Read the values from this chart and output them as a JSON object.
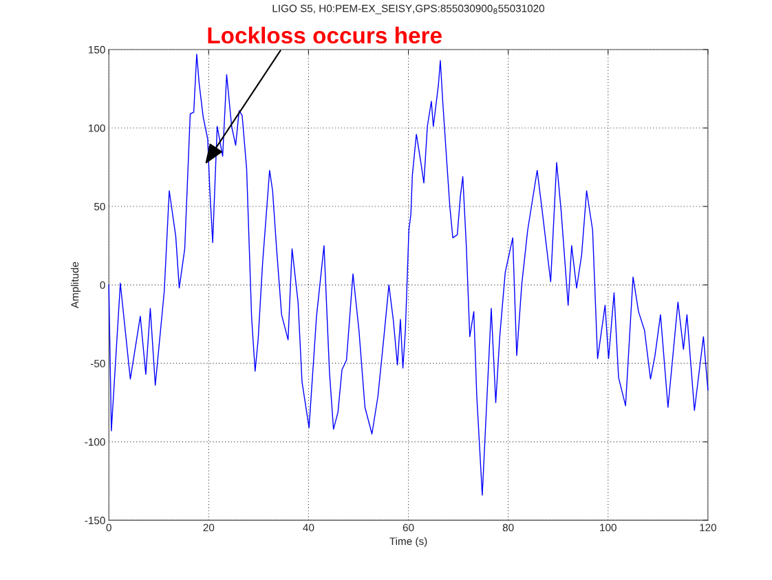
{
  "chart_data": {
    "type": "line",
    "title": "LIGO S5, H0:PEM-EX_SEISY,GPS:855030900$_{8}$55031020",
    "xlabel": "Time (s)",
    "ylabel": "Amplitude",
    "x": [
      0,
      0.5,
      2.3,
      4.3,
      6.3,
      7.4,
      8.3,
      9.3,
      11.1,
      12.1,
      13.4,
      14.1,
      15.2,
      16.3,
      17.0,
      17.6,
      18.1,
      18.9,
      19.8,
      20.2,
      20.8,
      21.7,
      22.8,
      23.6,
      24.6,
      25.4,
      26.1,
      26.7,
      27.6,
      28.6,
      29.3,
      29.9,
      30.8,
      32.2,
      32.8,
      33.6,
      34.6,
      35.9,
      36.7,
      37.9,
      38.7,
      40.1,
      41.6,
      43.1,
      44.2,
      45.0,
      45.9,
      46.7,
      47.6,
      48.9,
      50.1,
      51.3,
      52.7,
      53.9,
      55.1,
      56.1,
      57.0,
      57.8,
      58.4,
      58.9,
      59.4,
      60.1,
      60.5,
      60.8,
      61.6,
      62.5,
      63.1,
      63.8,
      64.6,
      65.0,
      66.0,
      66.4,
      66.9,
      67.7,
      68.3,
      68.9,
      69.8,
      70.4,
      70.9,
      71.6,
      72.3,
      73.1,
      73.7,
      74.8,
      75.6,
      76.6,
      77.5,
      78.3,
      79.4,
      80.9,
      81.7,
      82.7,
      83.9,
      85.8,
      86.7,
      88.5,
      89.7,
      90.6,
      92.0,
      92.7,
      93.7,
      94.7,
      95.7,
      96.9,
      97.9,
      99.4,
      100.1,
      101.2,
      102.1,
      103.5,
      105.0,
      106.1,
      107.3,
      108.5,
      109.4,
      110.5,
      112.0,
      114.0,
      115.1,
      115.8,
      117.3,
      119.1,
      120
    ],
    "series": [
      {
        "color": "#0000ff",
        "values": [
          0,
          -93,
          1,
          -60,
          -20,
          -57,
          -15,
          -64,
          -4,
          60,
          31,
          -2,
          23,
          109,
          110,
          147,
          128,
          107,
          93,
          62,
          27,
          101,
          82,
          134,
          101,
          89,
          111,
          108,
          74,
          -21,
          -55,
          -35,
          14,
          73,
          60,
          23,
          -19,
          -35,
          23,
          -11,
          -62,
          -91,
          -20,
          25,
          -56,
          -92,
          -81,
          -54,
          -48,
          7,
          -29,
          -78,
          -95,
          -71,
          -33,
          0,
          -23,
          -51,
          -22,
          -53,
          -29,
          35,
          45,
          70,
          96,
          78,
          65,
          101,
          117,
          101,
          127,
          143,
          116,
          78,
          50,
          30,
          32,
          56,
          69,
          25,
          -33,
          -17,
          -71,
          -134,
          -81,
          -15,
          -75,
          -33,
          8,
          30,
          -45,
          0,
          35,
          73,
          50,
          2,
          78,
          47,
          -13,
          25,
          -2,
          19,
          60,
          35,
          -47,
          -13,
          -47,
          -5,
          -59,
          -77,
          5,
          -17,
          -29,
          -60,
          -45,
          -19,
          -78,
          -11,
          -41,
          -19,
          -80,
          -33,
          -67
        ]
      }
    ],
    "xlim": [
      0,
      120
    ],
    "ylim": [
      -150,
      150
    ],
    "xticks": [
      0,
      20,
      40,
      60,
      80,
      100,
      120
    ],
    "yticks": [
      -150,
      -100,
      -50,
      0,
      50,
      100,
      150
    ],
    "grid": true,
    "line_style": "solid",
    "annotations": [
      {
        "text": "Lockloss occurs here",
        "x": 19.3,
        "y": 77
      }
    ]
  }
}
